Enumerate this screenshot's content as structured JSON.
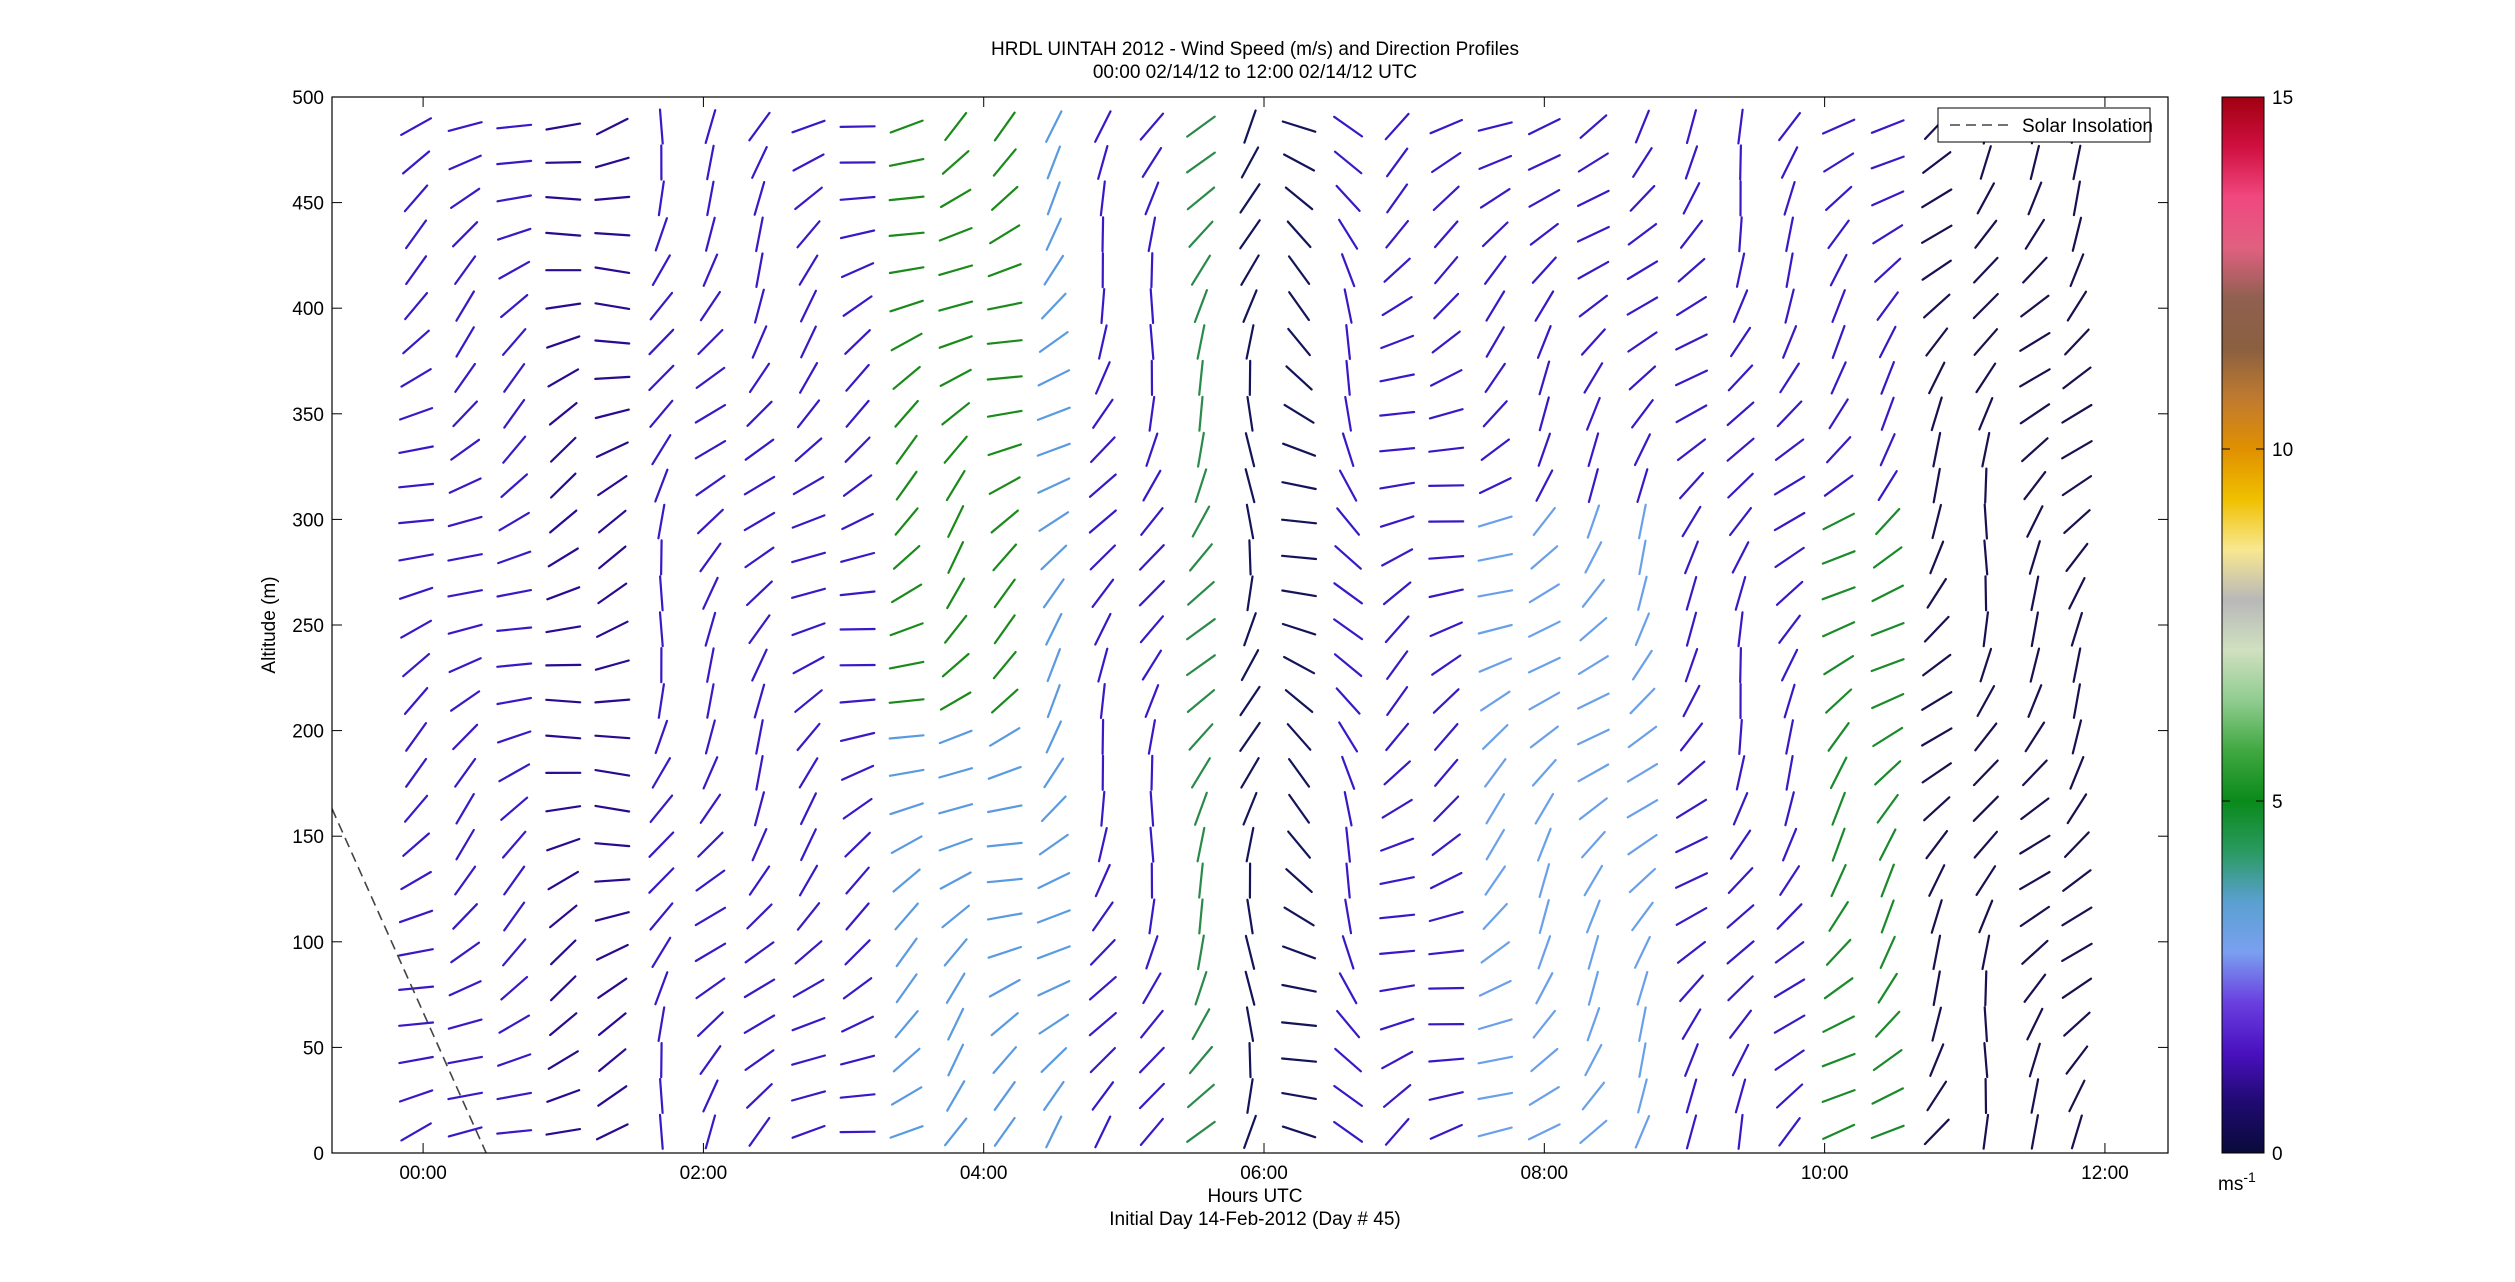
{
  "chart_data": {
    "type": "scatter",
    "subtype": "wind-barb-profile",
    "title_line1": "HRDL UINTAH 2012 - Wind Speed (m/s) and Direction Profiles",
    "title_line2": "00:00 02/14/12 to 12:00 02/14/12  UTC",
    "xlabel": "Hours UTC",
    "xlabel2": "Initial Day 14-Feb-2012 (Day # 45)",
    "ylabel": "Altitude (m)",
    "xlim": [
      -0.65,
      12.45
    ],
    "ylim": [
      0,
      500
    ],
    "xticks": [
      0,
      2,
      4,
      6,
      8,
      10,
      12
    ],
    "xtick_labels": [
      "00:00",
      "02:00",
      "04:00",
      "06:00",
      "08:00",
      "10:00",
      "12:00"
    ],
    "yticks": [
      0,
      50,
      100,
      150,
      200,
      250,
      300,
      350,
      400,
      450,
      500
    ],
    "ytick_labels": [
      "0",
      "50",
      "100",
      "150",
      "200",
      "250",
      "300",
      "350",
      "400",
      "450",
      "500"
    ],
    "colorbar": {
      "min": 0,
      "max": 15,
      "ticks": [
        0,
        5,
        10,
        15
      ],
      "tick_labels": [
        "0",
        "5",
        "10",
        "15"
      ],
      "unit_label": "ms",
      "unit_exponent": "-1",
      "colors": [
        "#0a0a3a",
        "#1f0a70",
        "#4a10c0",
        "#6a40e0",
        "#7aa0f0",
        "#5aa0d0",
        "#2a9a60",
        "#0a8a1a",
        "#40a840",
        "#90cc90",
        "#d0e0c0",
        "#b8b8b8",
        "#f8e890",
        "#f0c000",
        "#e09000",
        "#c07a30",
        "#8a6040",
        "#906050",
        "#e06080",
        "#f04880",
        "#d01040",
        "#a00010"
      ]
    },
    "legend": {
      "position": "top-right",
      "entries": [
        "Solar Insolation"
      ]
    },
    "solar_insolation_line": {
      "x": [
        -0.65,
        0.45
      ],
      "y": [
        163,
        0
      ]
    },
    "times": [
      -0.05,
      0.3,
      0.65,
      1.0,
      1.35,
      1.7,
      2.05,
      2.4,
      2.75,
      3.1,
      3.45,
      3.8,
      4.15,
      4.5,
      4.85,
      5.2,
      5.55,
      5.9,
      6.25,
      6.6,
      6.95,
      7.3,
      7.65,
      8.0,
      8.35,
      8.7,
      9.05,
      9.4,
      9.75,
      10.1,
      10.45,
      10.8,
      11.15,
      11.5,
      11.8
    ],
    "altitudes": [
      10,
      27,
      44,
      61,
      78,
      95,
      112,
      129,
      146,
      163,
      180,
      197,
      214,
      231,
      248,
      265,
      282,
      299,
      316,
      333,
      350,
      367,
      384,
      401,
      418,
      435,
      452,
      469,
      486
    ],
    "wind_direction_profile": [
      {
        "t": -0.05,
        "dir": 240
      },
      {
        "t": 0.3,
        "dir": 235
      },
      {
        "t": 0.65,
        "dir": 240
      },
      {
        "t": 1.0,
        "dir": 250
      },
      {
        "t": 1.35,
        "dir": 255
      },
      {
        "t": 1.7,
        "dir": 200
      },
      {
        "t": 2.05,
        "dir": 215
      },
      {
        "t": 2.4,
        "dir": 215
      },
      {
        "t": 2.75,
        "dir": 230
      },
      {
        "t": 3.1,
        "dir": 245
      },
      {
        "t": 3.45,
        "dir": 240
      },
      {
        "t": 3.8,
        "dir": 230
      },
      {
        "t": 4.15,
        "dir": 240
      },
      {
        "t": 4.5,
        "dir": 225
      },
      {
        "t": 4.85,
        "dir": 205
      },
      {
        "t": 5.2,
        "dir": 200
      },
      {
        "t": 5.55,
        "dir": 210
      },
      {
        "t": 5.9,
        "dir": 190
      },
      {
        "t": 6.25,
        "dir": 300
      },
      {
        "t": 6.6,
        "dir": 330
      },
      {
        "t": 6.95,
        "dir": 240
      },
      {
        "t": 7.3,
        "dir": 245
      },
      {
        "t": 7.65,
        "dir": 235
      },
      {
        "t": 8.0,
        "dir": 220
      },
      {
        "t": 8.35,
        "dir": 220
      },
      {
        "t": 8.7,
        "dir": 215
      },
      {
        "t": 9.05,
        "dir": 220
      },
      {
        "t": 9.4,
        "dir": 205
      },
      {
        "t": 9.75,
        "dir": 215
      },
      {
        "t": 10.1,
        "dir": 225
      },
      {
        "t": 10.45,
        "dir": 225
      },
      {
        "t": 10.8,
        "dir": 215
      },
      {
        "t": 11.15,
        "dir": 200
      },
      {
        "t": 11.5,
        "dir": 215
      },
      {
        "t": 11.8,
        "dir": 215
      }
    ]
  }
}
